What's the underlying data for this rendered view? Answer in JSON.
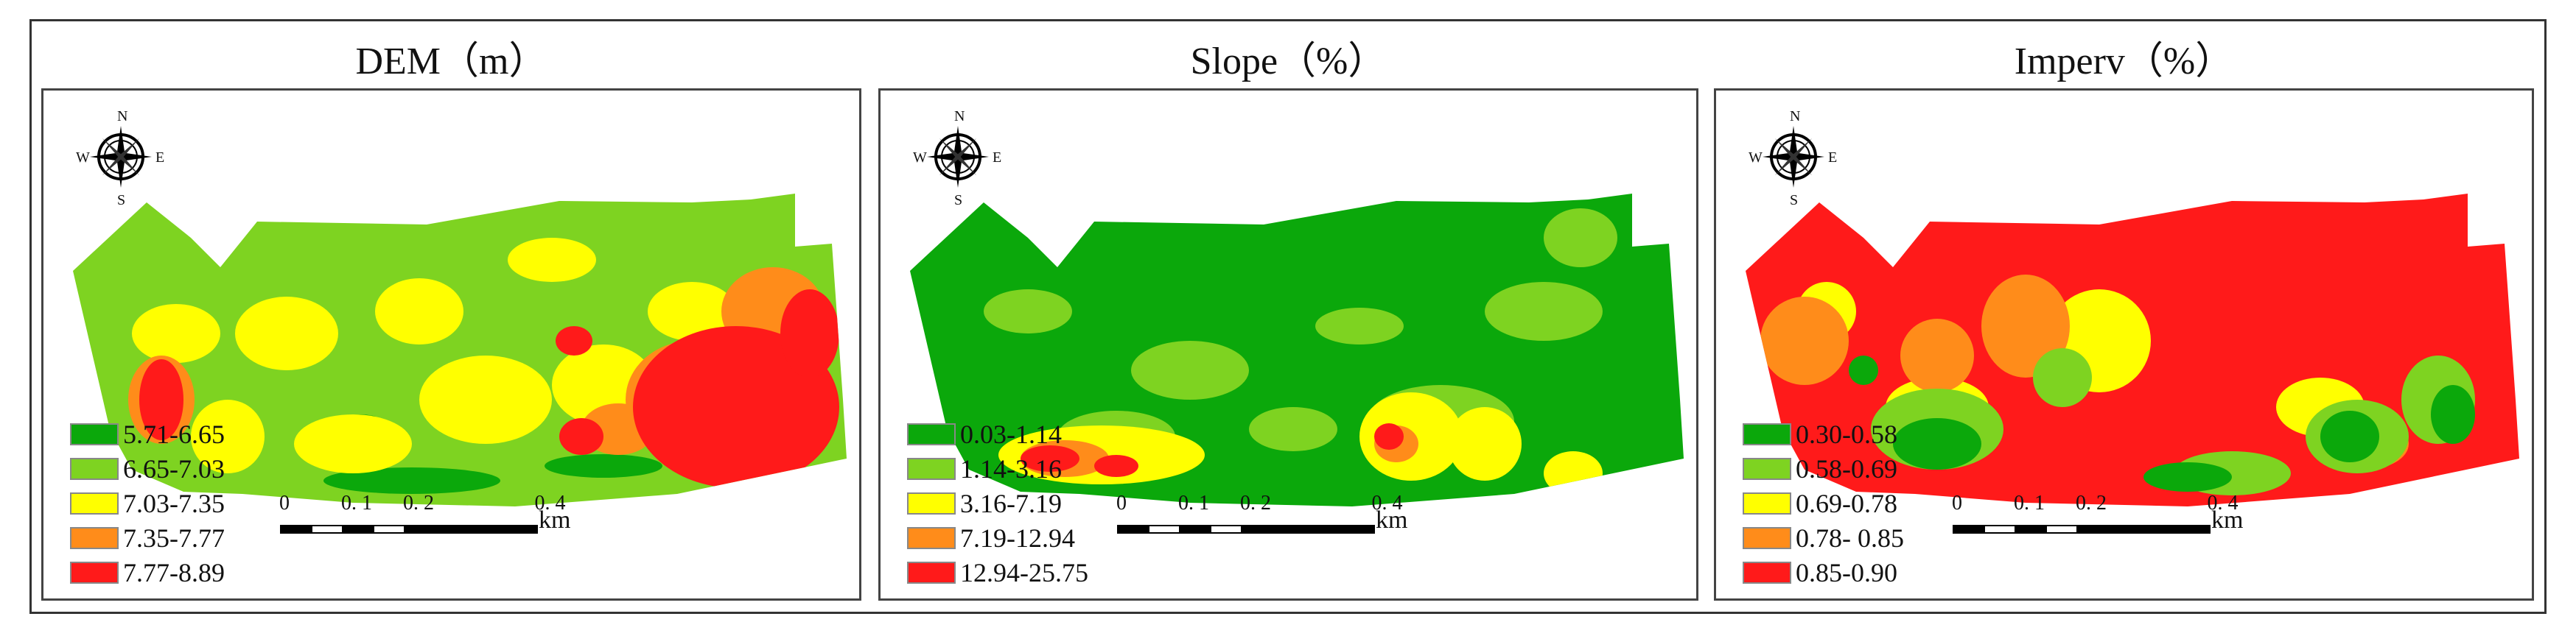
{
  "figure": {
    "panels": [
      {
        "id": "dem",
        "title": "DEM（m）",
        "legend": [
          {
            "label": "5.71-6.65",
            "color": "#0ba80b"
          },
          {
            "label": "6.65-7.03",
            "color": "#7ed321"
          },
          {
            "label": "7.03-7.35",
            "color": "#ffff00"
          },
          {
            "label": "7.35-7.77",
            "color": "#ff8c1a"
          },
          {
            "label": "7.77-8.89",
            "color": "#ff1a1a"
          }
        ]
      },
      {
        "id": "slope",
        "title": "Slope（%）",
        "legend": [
          {
            "label": "0.03-1.14",
            "color": "#0ba80b"
          },
          {
            "label": "1.14-3.16",
            "color": "#7ed321"
          },
          {
            "label": "3.16-7.19",
            "color": "#ffff00"
          },
          {
            "label": "7.19-12.94",
            "color": "#ff8c1a"
          },
          {
            "label": "12.94-25.75",
            "color": "#ff1a1a"
          }
        ]
      },
      {
        "id": "imperv",
        "title": "Imperv（%）",
        "legend": [
          {
            "label": "0.30-0.58",
            "color": "#0ba80b"
          },
          {
            "label": "0.58-0.69",
            "color": "#7ed321"
          },
          {
            "label": "0.69-0.78",
            "color": "#ffff00"
          },
          {
            "label": "0.78- 0.85",
            "color": "#ff8c1a"
          },
          {
            "label": "0.85-0.90",
            "color": "#ff1a1a"
          }
        ]
      }
    ],
    "compass": {
      "n": "N",
      "s": "S",
      "e": "E",
      "w": "W"
    },
    "scalebar": {
      "ticks": [
        "0",
        "0. 1",
        "0. 2",
        "0. 4"
      ],
      "unit": "km"
    }
  }
}
